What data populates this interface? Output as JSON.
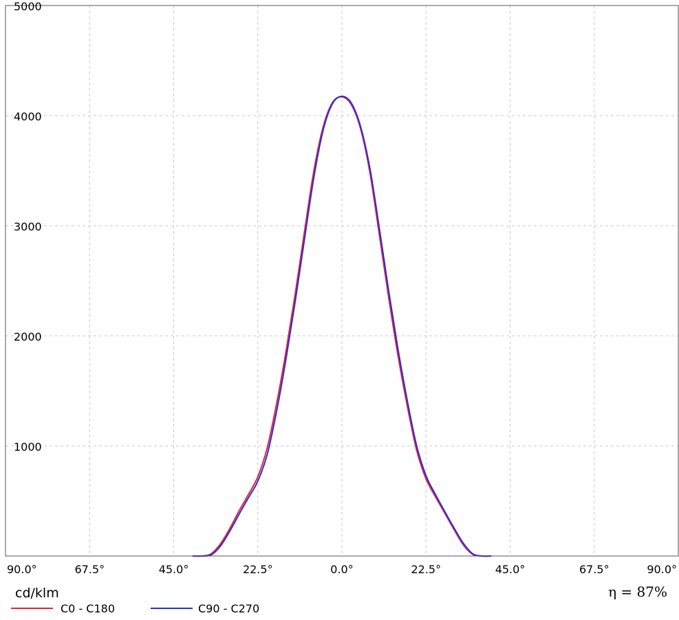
{
  "chart_data": {
    "type": "line",
    "title": "",
    "xlabel": "",
    "ylabel": "cd/klm",
    "xlim": [
      -90,
      90
    ],
    "ylim": [
      0,
      5000
    ],
    "grid": true,
    "legend": "bottom-left",
    "x_tick_labels": [
      "90.0°",
      "67.5°",
      "45.0°",
      "22.5°",
      "0.0°",
      "22.5°",
      "45.0°",
      "67.5°",
      "90.0°"
    ],
    "y_tick_labels": [
      "1000",
      "2000",
      "3000",
      "4000",
      "5000"
    ],
    "efficiency_label": "η = 87%",
    "series": [
      {
        "name": "C0 - C180",
        "color": "#e8242e",
        "x": [
          -40,
          -37.5,
          -35,
          -32.5,
          -30,
          -27.5,
          -25,
          -22.5,
          -20,
          -17.5,
          -15,
          -12.5,
          -10,
          -7.5,
          -5,
          -2.5,
          0,
          2.5,
          5,
          7.5,
          10,
          12.5,
          15,
          17.5,
          20,
          22.5,
          25,
          27.5,
          30,
          32.5,
          35,
          37.5,
          40
        ],
        "y": [
          0,
          0,
          20,
          110,
          250,
          410,
          560,
          720,
          980,
          1380,
          1850,
          2380,
          2950,
          3500,
          3900,
          4120,
          4170,
          4100,
          3880,
          3480,
          2920,
          2350,
          1820,
          1360,
          960,
          700,
          540,
          390,
          240,
          100,
          15,
          0,
          0
        ]
      },
      {
        "name": "C90 - C270",
        "color": "#2a2ae0",
        "x": [
          -40,
          -37.5,
          -35,
          -32.5,
          -30,
          -27.5,
          -25,
          -22.5,
          -20,
          -17.5,
          -15,
          -12.5,
          -10,
          -7.5,
          -5,
          -2.5,
          0,
          2.5,
          5,
          7.5,
          10,
          12.5,
          15,
          17.5,
          20,
          22.5,
          25,
          27.5,
          30,
          32.5,
          35,
          37.5,
          40
        ],
        "y": [
          0,
          0,
          10,
          90,
          225,
          380,
          530,
          680,
          920,
          1310,
          1780,
          2310,
          2880,
          3440,
          3870,
          4110,
          4175,
          4115,
          3900,
          3520,
          2980,
          2410,
          1880,
          1410,
          1000,
          730,
          560,
          405,
          255,
          115,
          20,
          0,
          0
        ]
      }
    ]
  }
}
